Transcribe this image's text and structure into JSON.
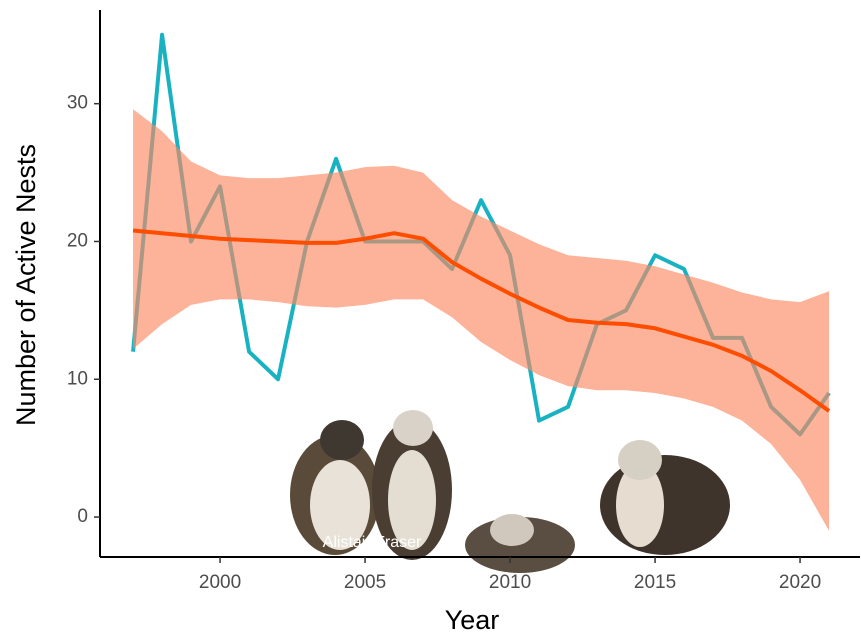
{
  "chart_data": {
    "type": "line",
    "x_label": "Year",
    "y_label": "Number of Active Nests",
    "x": [
      1997,
      1998,
      1999,
      2000,
      2001,
      2002,
      2003,
      2004,
      2005,
      2006,
      2007,
      2008,
      2009,
      2010,
      2011,
      2012,
      2013,
      2014,
      2015,
      2016,
      2017,
      2018,
      2019,
      2020,
      2021
    ],
    "values": [
      12,
      35,
      20,
      24,
      12,
      10,
      20,
      26,
      20,
      20,
      20,
      18,
      23,
      19,
      7,
      8,
      14,
      15,
      19,
      18,
      13,
      13,
      8,
      6,
      9
    ],
    "color": "#19b2c2",
    "smooth": {
      "values": [
        20.8,
        20.6,
        20.4,
        20.2,
        20.1,
        20.0,
        19.9,
        19.9,
        20.2,
        20.6,
        20.2,
        18.5,
        17.3,
        16.2,
        15.2,
        14.3,
        14.1,
        14.0,
        13.7,
        13.1,
        12.5,
        11.7,
        10.6,
        9.2,
        7.7
      ],
      "lower": [
        12.2,
        14,
        15.4,
        15.8,
        15.8,
        15.6,
        15.3,
        15.2,
        15.4,
        15.8,
        15.8,
        14.5,
        12.7,
        11.4,
        10.3,
        9.5,
        9.2,
        9.2,
        9.0,
        8.6,
        8.0,
        7.0,
        5.3,
        2.7,
        -1.0
      ],
      "upper": [
        29.6,
        28,
        25.8,
        24.8,
        24.6,
        24.6,
        24.8,
        25.0,
        25.4,
        25.5,
        25.0,
        23.0,
        21.8,
        20.8,
        19.8,
        19.0,
        18.8,
        18.6,
        18.2,
        17.6,
        17.0,
        16.3,
        15.8,
        15.6,
        16.4
      ],
      "color": "#ff4d00",
      "band_color": "#fa8a62"
    },
    "xlim": [
      1995.86,
      2021.55
    ],
    "xticks": [
      2000,
      2005,
      2010,
      2015,
      2020
    ],
    "ylim": [
      -2.9,
      36.8
    ],
    "yticks": [
      0,
      10,
      20,
      30
    ],
    "image_credit": "Alistair Fraser"
  }
}
